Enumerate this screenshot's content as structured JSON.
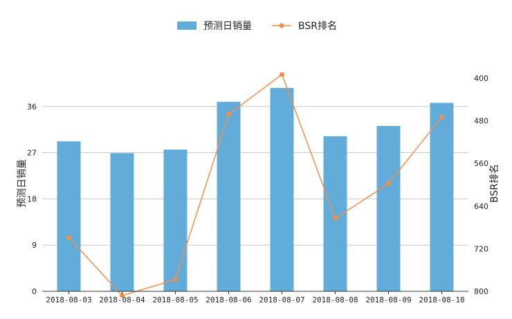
{
  "chart_data": {
    "type": "bar-line-combo",
    "categories": [
      "2018-08-03",
      "2018-08-04",
      "2018-08-05",
      "2018-08-06",
      "2018-08-07",
      "2018-08-08",
      "2018-08-09",
      "2018-08-10"
    ],
    "series": [
      {
        "name": "预测日销量",
        "type": "bar",
        "axis": "left",
        "color": "#62ACDA",
        "values": [
          29.2,
          26.9,
          27.6,
          36.9,
          39.6,
          30.2,
          32.2,
          36.7
        ]
      },
      {
        "name": "BSR排名",
        "type": "line",
        "axis": "right",
        "color": "#F28E4B",
        "values": [
          699,
          808,
          778,
          468,
          393,
          663,
          598,
          473
        ]
      }
    ],
    "ylabel_left": "预测日销量",
    "ylabel_right": "BSR排名",
    "y_left_ticks": [
      0,
      9,
      18,
      27,
      36
    ],
    "y_left_range": [
      0,
      41.5
    ],
    "y_right_ticks": [
      400,
      480,
      560,
      640,
      720,
      800
    ],
    "y_right_range": [
      400,
      800
    ],
    "y_right_inverted": true,
    "legend_position": "top-center",
    "grid": "horizontal"
  }
}
